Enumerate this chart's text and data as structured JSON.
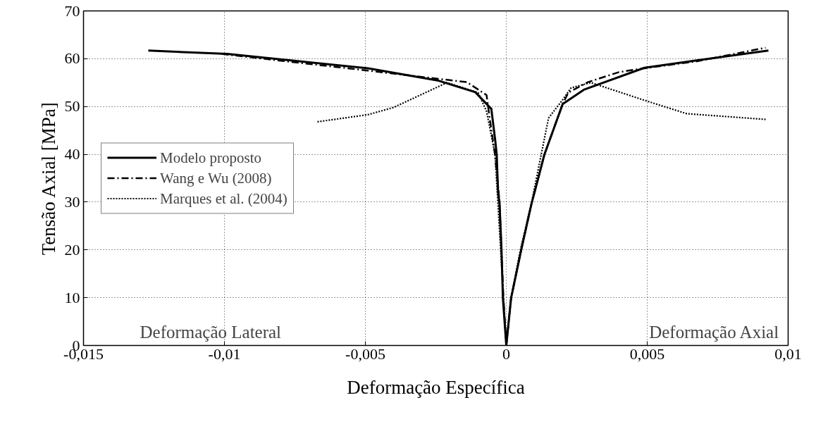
{
  "chart_data": {
    "type": "line",
    "xlabel": "Deformação Específica",
    "ylabel": "Tensão Axial [MPa]",
    "xlim": [
      -0.015,
      0.01
    ],
    "ylim": [
      0,
      70
    ],
    "xticks": [
      {
        "value": -0.015,
        "label": "-0,015"
      },
      {
        "value": -0.01,
        "label": "-0,01"
      },
      {
        "value": -0.005,
        "label": "-0,005"
      },
      {
        "value": 0,
        "label": "0"
      },
      {
        "value": 0.005,
        "label": "0,005"
      },
      {
        "value": 0.01,
        "label": "0,01"
      }
    ],
    "yticks": [
      0,
      10,
      20,
      30,
      40,
      50,
      60,
      70
    ],
    "grid": true,
    "legend": "left",
    "annotations": [
      "Deformação Lateral",
      "Deformação Axial"
    ],
    "series": [
      {
        "name": "Modelo proposto",
        "color": "#000000",
        "line_style": "solid",
        "x": [
          -0.0127,
          -0.0099,
          -0.0049,
          -0.0024,
          -0.0011,
          -0.00053,
          -0.00039,
          -0.00034,
          -0.00029,
          -0.00024,
          -0.00017,
          -0.00012,
          0,
          0.00017,
          0.00053,
          0.0009,
          0.001,
          0.00135,
          0.002,
          0.00275,
          0.0049,
          0.0068,
          0.0093
        ],
        "values": [
          61.7,
          61.0,
          58.0,
          55.4,
          53.0,
          49.5,
          42.8,
          39.9,
          32,
          29.8,
          20,
          9.9,
          0,
          9.9,
          20,
          29.8,
          32,
          39.9,
          50.5,
          53.5,
          58.1,
          59.7,
          61.7
        ]
      },
      {
        "name": "Wang e Wu (2008)",
        "color": "#000000",
        "line_style": "dashdot",
        "x": [
          -0.0101,
          -0.0049,
          -0.0014,
          -0.0007,
          -0.0006,
          -0.0004,
          -0.00027,
          -0.00024,
          -0.00017,
          -0.0001,
          0,
          0.00017,
          0.00053,
          0.0009,
          0.00135,
          0.002,
          0.0022,
          0.0029,
          0.004,
          0.0049,
          0.0068,
          0.0092
        ],
        "values": [
          61.0,
          57.5,
          55.1,
          52.4,
          48,
          39.9,
          32,
          29.8,
          20,
          9.9,
          0,
          9.9,
          20,
          29.8,
          39.9,
          50.5,
          52.9,
          55.1,
          57.2,
          58.0,
          59.5,
          62.3
        ]
      },
      {
        "name": "Marques et al. (2004)",
        "color": "#000000",
        "line_style": "dotted",
        "x": [
          -0.0067,
          -0.0049,
          -0.004,
          -0.0021,
          -0.001,
          -0.0007,
          -0.0004,
          -0.0002,
          0,
          0.00017,
          0.0005,
          0.0009,
          0.0015,
          0.002,
          0.0023,
          0.003,
          0.0049,
          0.0064,
          0.0092
        ],
        "values": [
          46.8,
          48.3,
          49.8,
          55.0,
          52.9,
          49,
          40,
          20,
          0,
          9.9,
          20,
          30,
          47.6,
          51.4,
          53.9,
          55.0,
          51.3,
          48.5,
          47.3
        ]
      }
    ]
  }
}
